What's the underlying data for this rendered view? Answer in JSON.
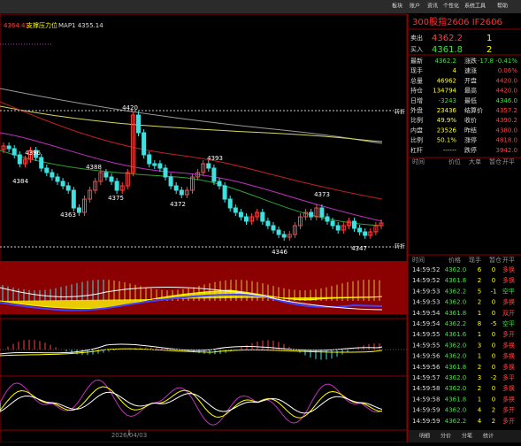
{
  "menu": [
    "板块",
    "账户",
    "资讯",
    "个性化",
    "系统工具",
    "帮助"
  ],
  "chart": {
    "header": {
      "last": "4364.41",
      "indicator": "支撑压力位",
      "ma": "MAP1 4355.14"
    },
    "price_labels": [
      "4420",
      "4396",
      "4384",
      "4388",
      "4375",
      "4393",
      "4372",
      "4373",
      "4363",
      "4346",
      "4347"
    ],
    "side_labels": [
      "转折",
      "转折"
    ],
    "date": "2026/04/03"
  },
  "quote": {
    "title": "300股指2606  IF2606",
    "ask": [
      "卖出",
      "4362.2",
      "1"
    ],
    "bid": [
      "买入",
      "4361.8",
      "2"
    ],
    "rows": [
      [
        "最新",
        "4362.2",
        "涨跌",
        "-17.8 -0.41%"
      ],
      [
        "现手",
        "4",
        "速涨",
        "0.06%"
      ],
      [
        "总量",
        "46962",
        "开盘",
        "4420.0"
      ],
      [
        "持仓",
        "134794",
        "最高",
        "4420.0"
      ],
      [
        "日增",
        "-3243",
        "最低",
        "4346.0"
      ],
      [
        "外盘",
        "23436",
        "结算价",
        "4357.2"
      ],
      [
        "比例",
        "49.9%",
        "收价",
        "4390.2"
      ],
      [
        "内盘",
        "23526",
        "昨结",
        "4380.0"
      ],
      [
        "比例",
        "50.1%",
        "涨停",
        "4818.0"
      ],
      [
        "杠杆",
        "------",
        "跌停",
        "3942.0"
      ]
    ],
    "columns": [
      "时间",
      "价位",
      "大单",
      "暂仓",
      "开平"
    ]
  },
  "ticks": {
    "columns": [
      "时间",
      "价格",
      "现手",
      "暂仓",
      "开平"
    ],
    "rows": [
      [
        "14:59:52",
        "4362.0",
        "6",
        "0",
        "多换"
      ],
      [
        "14:59:52",
        "4361.8",
        "2",
        "0",
        "多换"
      ],
      [
        "14:59:53",
        "4362.2",
        "5",
        "-1",
        "空平"
      ],
      [
        "14:59:53",
        "4362.0",
        "2",
        "0",
        "多换"
      ],
      [
        "14:59:54",
        "4361.8",
        "1",
        "0",
        "双开"
      ],
      [
        "14:59:54",
        "4362.2",
        "8",
        "-5",
        "空平"
      ],
      [
        "14:59:55",
        "4361.6",
        "1",
        "0",
        "多开"
      ],
      [
        "14:59:55",
        "4362.0",
        "3",
        "0",
        "多换"
      ],
      [
        "14:59:56",
        "4362.0",
        "1",
        "0",
        "多换"
      ],
      [
        "14:59:56",
        "4361.8",
        "2",
        "0",
        "多换"
      ],
      [
        "14:59:57",
        "4362.0",
        "3",
        "-2",
        "多平"
      ],
      [
        "14:59:58",
        "4362.0",
        "2",
        "0",
        "多换"
      ],
      [
        "14:59:58",
        "4361.8",
        "1",
        "0",
        "多换"
      ],
      [
        "14:59:59",
        "4362.0",
        "4",
        "2",
        "多开"
      ],
      [
        "14:59:59",
        "4362.2",
        "4",
        "2",
        "多开"
      ]
    ]
  },
  "tabs": [
    "明细",
    "分价",
    "分笔",
    "统计"
  ]
}
